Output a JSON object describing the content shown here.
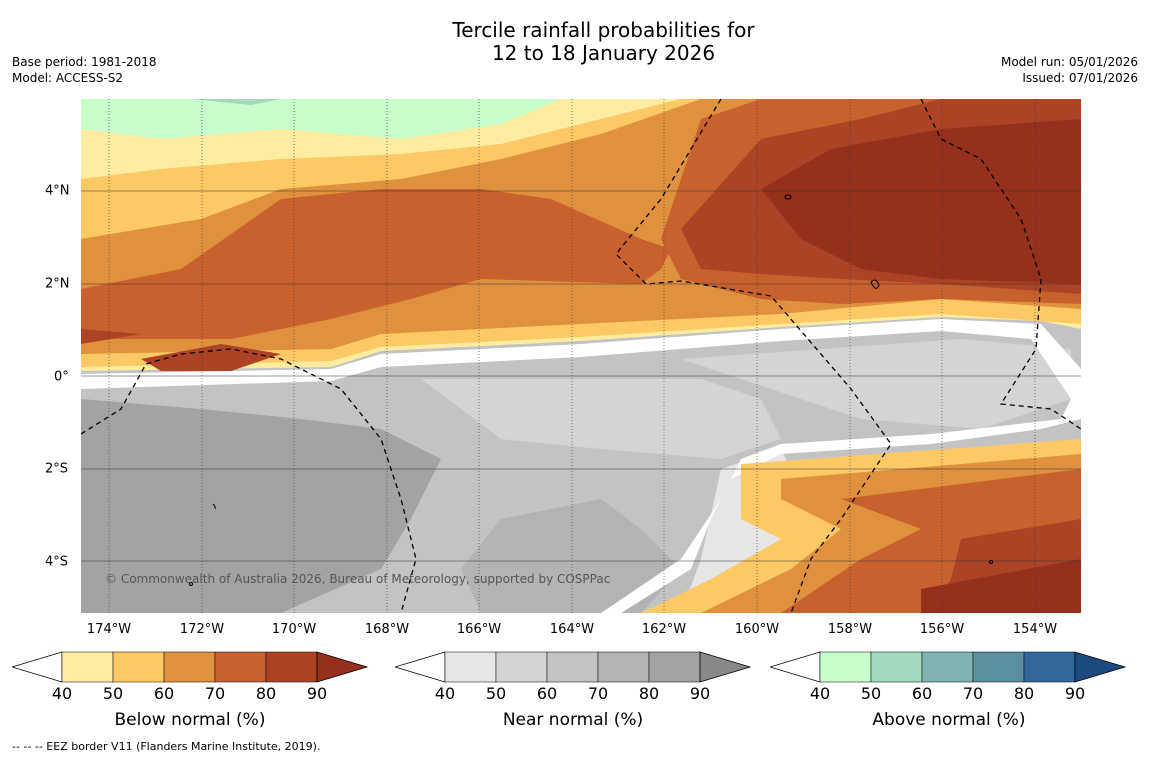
{
  "title_line1": "Tercile rainfall probabilities for",
  "title_line2": "12 to 18 January 2026",
  "base_period": "Base period: 1981-2018",
  "model": "Model: ACCESS-S2",
  "model_run": "Model run: 05/01/2026",
  "issued": "Issued: 07/01/2026",
  "x_ticks": [
    "174°W",
    "172°W",
    "170°W",
    "168°W",
    "166°W",
    "164°W",
    "162°W",
    "160°W",
    "158°W",
    "156°W",
    "154°W"
  ],
  "y_ticks": [
    "4°N",
    "2°N",
    "0°",
    "2°S",
    "4°S"
  ],
  "copyright": "© Commonwealth of Australia 2026, Bureau of Meteorology, supported by COSPPac",
  "footnote": "--  --  -- EEZ border V11 (Flanders Marine Institute, 2019).",
  "colorbars": [
    {
      "title": "Below normal (%)",
      "ticks": [
        "40",
        "50",
        "60",
        "70",
        "80",
        "90"
      ],
      "colors": [
        "#ffffff",
        "#feeca0",
        "#fdc964",
        "#e0913e",
        "#c9612e",
        "#ab4324",
        "#94301c"
      ]
    },
    {
      "title": "Near normal (%)",
      "ticks": [
        "40",
        "50",
        "60",
        "70",
        "80",
        "90"
      ],
      "colors": [
        "#ffffff",
        "#e6e6e6",
        "#d4d4d4",
        "#c3c3c3",
        "#b3b3b3",
        "#a3a3a3",
        "#888888"
      ]
    },
    {
      "title": "Above normal (%)",
      "ticks": [
        "40",
        "50",
        "60",
        "70",
        "80",
        "90"
      ],
      "colors": [
        "#ffffff",
        "#c8fdcc",
        "#a3d9bf",
        "#80b3b2",
        "#5b8fa0",
        "#34679a",
        "#1e4a82"
      ]
    }
  ]
}
